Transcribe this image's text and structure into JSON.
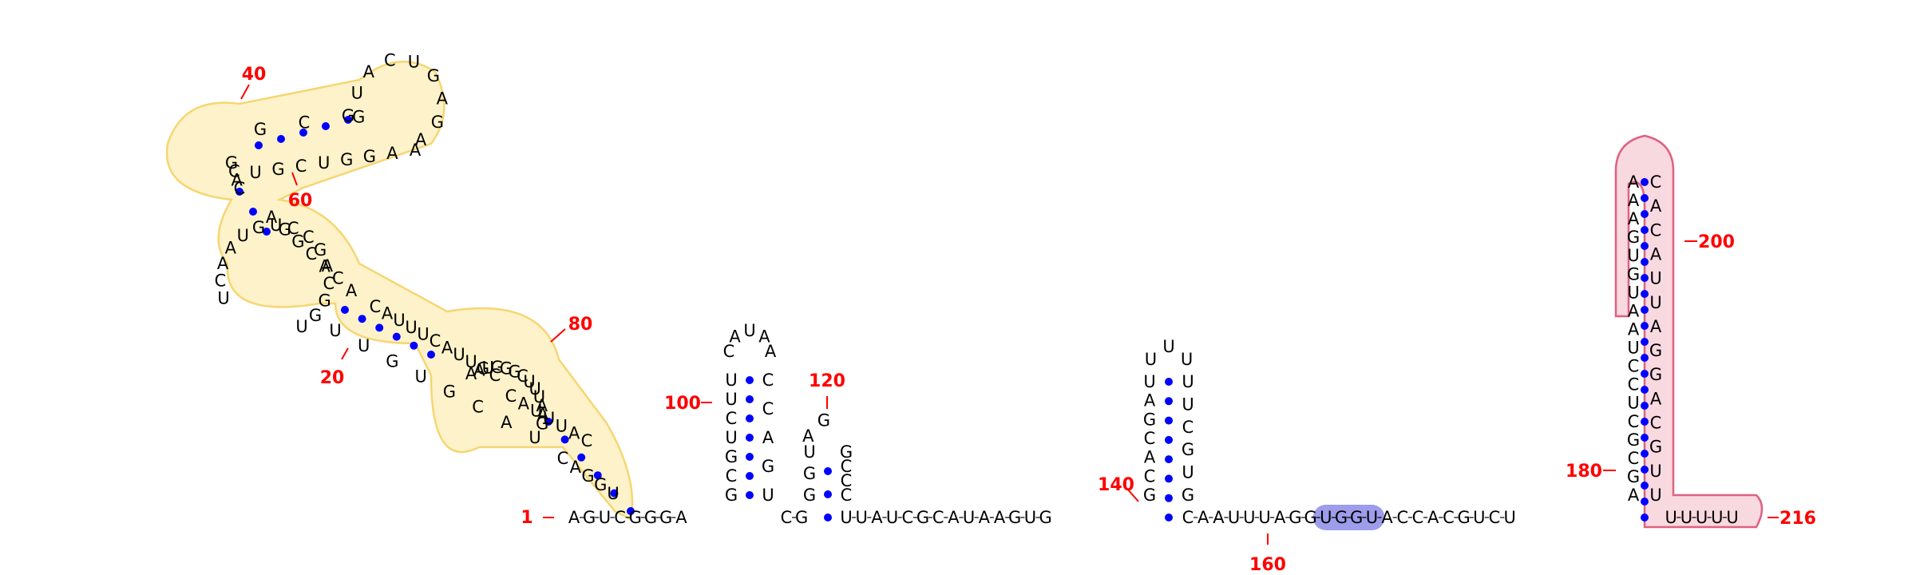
{
  "title": "RNA secondary structure diagram",
  "colors": {
    "nucleotide": "#000000",
    "backbone": "#000000",
    "base_pair": "#0000ff",
    "number": "#ff0000",
    "yellow_fill": "#fdf0c0",
    "yellow_stroke": "#f5cf5a",
    "pink_fill": "#f9d9e0",
    "pink_stroke": "#e06080",
    "blue_fill": "#8c8ce8"
  },
  "position_labels": [
    "1",
    "20",
    "40",
    "60",
    "80",
    "100",
    "120",
    "140",
    "160",
    "180",
    "200",
    "216"
  ],
  "features": [
    {
      "name": "yellow-domain",
      "range": [
        2,
        92
      ]
    },
    {
      "name": "blue-motif",
      "sequence": "UGGU"
    },
    {
      "name": "pink-hairpin",
      "range": [
        180,
        216
      ]
    }
  ],
  "strands": {
    "helix_a_3p": "UGGAC",
    "stem_b_5p": "UACGUGUU",
    "stem_b_3p": "UGGCAGCCUGUAACU",
    "helix_c_5p": "CACGGCG",
    "helix_c_loop": "GUACUGAGA",
    "helix_c_3p": "AAGGUCGU",
    "stem_b_mid": "AGGCACA",
    "stem_b_tail": "CAUUUCAUUGC",
    "helix_a_5p": "CAUUUAC",
    "loop_80": "AAUGGGCUUUAAG",
    "h100_up": "GCGUCUU",
    "h100_loop": "CAUAA",
    "h100_down": "CCAGU",
    "linker_1": "CG",
    "h120_up": "GGUAG",
    "h120_down": "GCCC",
    "linker_2": "UUAUCGCAUAAGUG",
    "h140_up": "GCACGAU",
    "h140_loop": "UUU",
    "h140_down": "UUCGUG",
    "linker_3": "CAAUUUAGG",
    "motif": "UGGU",
    "linker_4": "ACCACGUCU",
    "h200_up": "AGCGCUCCUAAUGUGAAA",
    "h200_down": "CACAUUAGGACGUU",
    "tail": "UUUUU"
  },
  "sequence_5prime": "AGUCGGGA"
}
